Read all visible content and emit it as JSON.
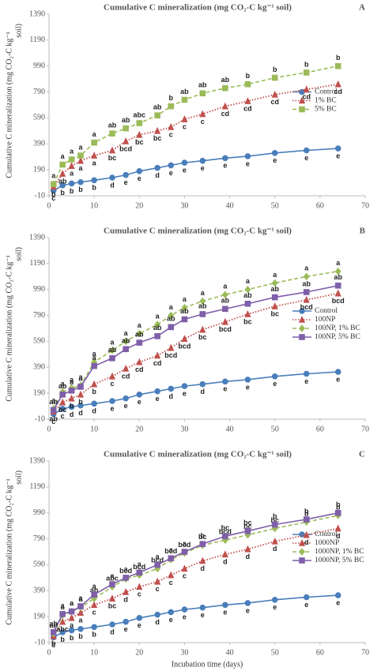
{
  "chart_data": [
    {
      "type": "line",
      "panel": "A",
      "title": "Cumulative  C mineralization  (mg CO₂-C kg⁻¹ soil)",
      "ylabel": [
        "Cumulative C mineralization  (mg CO₂-C kg⁻¹",
        "soil)"
      ],
      "x": [
        1,
        3,
        5,
        7,
        10,
        14,
        17,
        20,
        24,
        27,
        30,
        34,
        39,
        44,
        50,
        57,
        64
      ],
      "xlim": [
        0,
        70
      ],
      "xticks": [
        0,
        10,
        20,
        30,
        40,
        50,
        60,
        70
      ],
      "ylim": [
        -10,
        1390
      ],
      "yticks": [
        -10,
        190,
        390,
        590,
        790,
        990,
        1190,
        1390
      ],
      "legend": "right",
      "series": [
        {
          "name": "Control",
          "color": "#4a7ebb",
          "dash": "solid",
          "marker": "circle",
          "letter_position": "below",
          "values": [
            30,
            70,
            85,
            95,
            110,
            130,
            150,
            180,
            205,
            225,
            245,
            260,
            280,
            295,
            320,
            340,
            355
          ],
          "letters": [
            "c",
            "b",
            "b",
            "b",
            "b",
            "d",
            "e",
            "e",
            "d",
            "e",
            "e",
            "e",
            "e",
            "e",
            "e",
            "e",
            "e"
          ]
        },
        {
          "name": "1% BC",
          "color": "#c0504d",
          "dash": "dotted",
          "marker": "triangle",
          "letter_position": "below",
          "values": [
            60,
            160,
            220,
            260,
            300,
            340,
            410,
            460,
            490,
            520,
            580,
            620,
            680,
            720,
            770,
            810,
            850
          ],
          "letters": [
            "b",
            "ab",
            "a",
            "a",
            "a",
            "bc",
            "bcd",
            "bc",
            "bc",
            "c",
            "c",
            "c",
            "cd",
            "cd",
            "cd",
            "cd",
            "cd"
          ]
        },
        {
          "name": "5% BC",
          "color": "#9bbb59",
          "dash": "dashed",
          "marker": "square",
          "letter_position": "above",
          "values": [
            80,
            230,
            270,
            300,
            400,
            470,
            510,
            550,
            610,
            680,
            730,
            780,
            820,
            850,
            900,
            940,
            990
          ],
          "letters": [
            "a",
            "a",
            "a",
            "a",
            "a",
            "ab",
            "ab",
            "abc",
            "ab",
            "b",
            "ab",
            "ab",
            "ab",
            "b",
            "b",
            "b",
            "b"
          ]
        }
      ]
    },
    {
      "type": "line",
      "panel": "B",
      "title": "Cumulative  C mineralization  (mg CO₂-C kg⁻¹ soil)",
      "ylabel": [
        "Cumulative C mineralization  (mg CO₂-C kg⁻¹",
        "soil)"
      ],
      "x": [
        1,
        3,
        5,
        7,
        10,
        14,
        17,
        20,
        24,
        27,
        30,
        34,
        39,
        44,
        50,
        57,
        64
      ],
      "xlim": [
        0,
        70
      ],
      "xticks": [
        0,
        10,
        20,
        30,
        40,
        50,
        60,
        70
      ],
      "ylim": [
        -10,
        1390
      ],
      "yticks": [
        -10,
        190,
        390,
        590,
        790,
        990,
        1190,
        1390
      ],
      "legend": "right",
      "series": [
        {
          "name": "Control",
          "color": "#4a7ebb",
          "dash": "solid",
          "marker": "circle",
          "letter_position": "below",
          "values": [
            30,
            70,
            85,
            95,
            110,
            130,
            150,
            180,
            205,
            225,
            245,
            260,
            280,
            295,
            320,
            340,
            355
          ],
          "letters": [
            "c",
            "c",
            "d",
            "d",
            "d",
            "e",
            "e",
            "e",
            "e",
            "d",
            "e",
            "d",
            "e",
            "e",
            "e",
            "e",
            "e"
          ]
        },
        {
          "name": "100NP",
          "color": "#c0504d",
          "dash": "dotted",
          "marker": "triangle",
          "letter_position": "below",
          "values": [
            50,
            120,
            150,
            180,
            260,
            320,
            380,
            430,
            480,
            540,
            610,
            680,
            740,
            800,
            860,
            910,
            960
          ],
          "letters": [
            "ab",
            "bc",
            "b",
            "b",
            "b",
            "c",
            "cd",
            "cd",
            "cd",
            "bcd",
            "bcd",
            "bc",
            "bcd",
            "bc",
            "bc",
            "bcd",
            "bcd"
          ]
        },
        {
          "name": "100NP, 1% BC",
          "color": "#9bbb59",
          "dash": "dashed",
          "marker": "diamond",
          "letter_position": "above",
          "values": [
            70,
            200,
            230,
            250,
            430,
            520,
            590,
            650,
            720,
            790,
            850,
            900,
            950,
            990,
            1040,
            1090,
            1130
          ],
          "letters": [
            "a",
            "a",
            "a",
            "a",
            "a",
            "a",
            "a",
            "a",
            "a",
            "a",
            "a",
            "a",
            "a",
            "a",
            "a",
            "a",
            "a"
          ]
        },
        {
          "name": "100NP, 5% BC",
          "color": "#7f5fa8",
          "dash": "solid",
          "marker": "square",
          "letter_position": "above",
          "values": [
            60,
            180,
            210,
            240,
            400,
            460,
            530,
            580,
            630,
            700,
            760,
            800,
            840,
            880,
            930,
            970,
            1020
          ],
          "letters": [
            "ab",
            "ab",
            "a",
            "a",
            "a",
            "ab",
            "ab",
            "ab",
            "ab",
            "ab",
            "ab",
            "ab",
            "ab",
            "ab",
            "ab",
            "ab",
            "ab"
          ]
        }
      ]
    },
    {
      "type": "line",
      "panel": "C",
      "title": "Cumulative  C mineralization  (mg CO₂-C kg⁻¹ soil)",
      "ylabel": [
        "Cumulative C mineralization  (mg CO₂-C kg⁻¹",
        "soil)"
      ],
      "xlabel": "Incubation time (days)",
      "x": [
        1,
        3,
        5,
        7,
        10,
        14,
        17,
        20,
        24,
        27,
        30,
        34,
        39,
        44,
        50,
        57,
        64
      ],
      "xlim": [
        0,
        70
      ],
      "xticks": [
        0,
        10,
        20,
        30,
        40,
        50,
        60,
        70
      ],
      "ylim": [
        -10,
        1390
      ],
      "yticks": [
        -10,
        190,
        390,
        590,
        790,
        990,
        1190,
        1390
      ],
      "legend": "right",
      "series": [
        {
          "name": "Control",
          "color": "#4a7ebb",
          "dash": "solid",
          "marker": "circle",
          "letter_position": "below",
          "values": [
            30,
            70,
            85,
            95,
            110,
            130,
            150,
            180,
            205,
            225,
            245,
            260,
            280,
            295,
            320,
            340,
            355
          ],
          "letters": [
            "c",
            "b",
            "b",
            "b",
            "b",
            "d",
            "e",
            "e",
            "d",
            "e",
            "e",
            "e",
            "e",
            "e",
            "e",
            "e",
            "e"
          ]
        },
        {
          "name": "1000NP",
          "color": "#c0504d",
          "dash": "dotted",
          "marker": "triangle",
          "letter_position": "below",
          "values": [
            40,
            150,
            180,
            220,
            280,
            330,
            380,
            420,
            460,
            510,
            560,
            620,
            670,
            710,
            770,
            820,
            870
          ],
          "letters": [
            "b",
            "abc",
            "a",
            "a",
            "c",
            "bc",
            "d",
            "c",
            "c",
            "c",
            "c",
            "d",
            "d",
            "d",
            "d",
            "d",
            "d"
          ]
        },
        {
          "name": "1000NP, 1% BC",
          "color": "#9bbb59",
          "dash": "dashed",
          "marker": "diamond",
          "letter_position": "above",
          "values": [
            60,
            200,
            230,
            260,
            330,
            420,
            480,
            510,
            560,
            630,
            680,
            740,
            780,
            820,
            870,
            920,
            970
          ],
          "letters": [
            "ab",
            "a",
            "a",
            "a",
            "ab",
            "abc",
            "bcd",
            "bcd",
            "bcd",
            "bcd",
            "bcd",
            "bc",
            "bcd",
            "bc",
            "bc",
            "b",
            "b"
          ]
        },
        {
          "name": "1000NP, 5% BC",
          "color": "#7f5fa8",
          "dash": "solid",
          "marker": "square",
          "letter_position": "above",
          "values": [
            70,
            210,
            230,
            270,
            360,
            440,
            490,
            530,
            590,
            640,
            690,
            750,
            810,
            850,
            900,
            940,
            990
          ],
          "letters": [
            "ab",
            "a",
            "a",
            "a",
            "a",
            "a",
            "a",
            "a",
            "a",
            "a",
            "a",
            "b",
            "bc",
            "bc",
            "b",
            "b",
            "b"
          ]
        }
      ]
    }
  ]
}
